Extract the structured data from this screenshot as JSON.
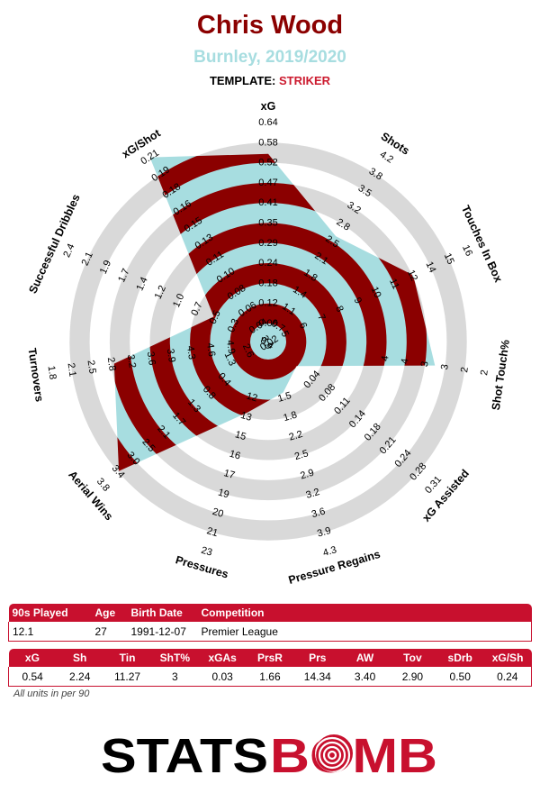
{
  "header": {
    "title": "Chris Wood",
    "subtitle": "Burnley, 2019/2020",
    "template_label": "TEMPLATE:",
    "template_value": "STRIKER"
  },
  "colors": {
    "player_fill": "#a7dde0",
    "ring_dark": "#8b0000",
    "ring_grey": "#d9d9d9",
    "title": "#8b0000",
    "subtitle": "#a7dde0",
    "accent": "#c8102e"
  },
  "chart_data": {
    "type": "radar",
    "title": "Chris Wood",
    "subtitle": "Burnley, 2019/2020",
    "axes": [
      {
        "label": "xG",
        "ticks": [
          "0.06",
          "0.12",
          "0.18",
          "0.24",
          "0.29",
          "0.35",
          "0.41",
          "0.47",
          "0.52",
          "0.58",
          "0.64"
        ],
        "min": 0.0,
        "max": 0.64
      },
      {
        "label": "Shots",
        "ticks": [
          "0.4",
          "0.7",
          "1.1",
          "1.4",
          "1.8",
          "2.1",
          "2.5",
          "2.8",
          "3.2",
          "3.5",
          "3.8",
          "4.2"
        ],
        "min": 0.0,
        "max": 4.2
      },
      {
        "label": "Touches In Box",
        "ticks": [
          "1.3",
          "2.6",
          "3.9",
          "5",
          "6",
          "7",
          "8",
          "9",
          "10",
          "11",
          "12",
          "14",
          "15",
          "16"
        ],
        "min": 0.0,
        "max": 16
      },
      {
        "label": "Shot Touch%",
        "ticks": [
          "4",
          "4",
          "3",
          "3",
          "2",
          "2"
        ],
        "min": 6.0,
        "max": 2.0
      },
      {
        "label": "xG Assisted",
        "ticks": [
          "0.04",
          "0.08",
          "0.11",
          "0.14",
          "0.18",
          "0.21",
          "0.24",
          "0.28",
          "0.31"
        ],
        "min": 0.0,
        "max": 0.31
      },
      {
        "label": "Pressure Regains",
        "ticks": [
          "1.5",
          "1.8",
          "2.2",
          "2.5",
          "2.9",
          "3.2",
          "3.6",
          "3.9",
          "4.3"
        ],
        "min": 1.1,
        "max": 4.3
      },
      {
        "label": "Pressures",
        "ticks": [
          "12",
          "13",
          "15",
          "16",
          "17",
          "19",
          "20",
          "21",
          "23"
        ],
        "min": 11,
        "max": 23
      },
      {
        "label": "Aerial Wins",
        "ticks": [
          "0.4",
          "0.8",
          "1.3",
          "1.7",
          "2.1",
          "2.5",
          "3.0",
          "3.4",
          "3.8"
        ],
        "min": 0.0,
        "max": 3.8
      },
      {
        "label": "Turnovers",
        "ticks": [
          "4.9",
          "4.6",
          "4.3",
          "3.9",
          "3.6",
          "3.2",
          "2.8",
          "2.5",
          "2.1",
          "1.8"
        ],
        "min": 5.3,
        "max": 1.8
      },
      {
        "label": "Successful Dribbles",
        "ticks": [
          "0.3",
          "0.5",
          "0.7",
          "1.0",
          "1.2",
          "1.4",
          "1.7",
          "1.9",
          "2.1",
          "2.4"
        ],
        "min": 0.0,
        "max": 2.4
      },
      {
        "label": "xG/Shot",
        "ticks": [
          "0.02",
          "0.04",
          "0.06",
          "0.08",
          "0.10",
          "0.11",
          "0.13",
          "0.15",
          "0.16",
          "0.18",
          "0.19",
          "0.21"
        ],
        "min": 0.0,
        "max": 0.21
      }
    ],
    "series": [
      {
        "values": [
          0.54,
          2.24,
          11.27,
          3,
          0.03,
          1.66,
          14.34,
          3.4,
          2.9,
          0.5,
          0.24
        ]
      }
    ]
  },
  "info_table": {
    "headers": [
      "90s Played",
      "Age",
      "Birth Date",
      "Competition"
    ],
    "row": [
      "12.1",
      "27",
      "1991-12-07",
      "Premier League"
    ]
  },
  "stats_table": {
    "headers": [
      "xG",
      "Sh",
      "Tin",
      "ShT%",
      "xGAs",
      "PrsR",
      "Prs",
      "AW",
      "Tov",
      "sDrb",
      "xG/Sh"
    ],
    "row": [
      "0.54",
      "2.24",
      "11.27",
      "3",
      "0.03",
      "1.66",
      "14.34",
      "3.40",
      "2.90",
      "0.50",
      "0.24"
    ]
  },
  "footnote": "All units in per 90",
  "logo": {
    "text_left": "STATS",
    "text_right": "BOMB"
  }
}
